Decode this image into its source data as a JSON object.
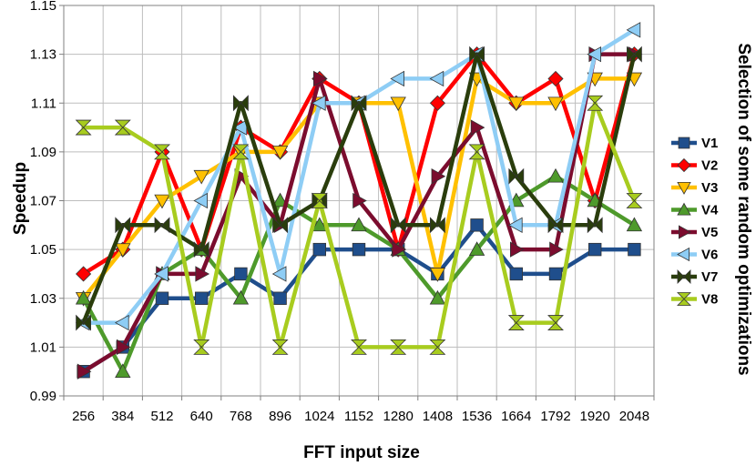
{
  "chart_data": {
    "type": "line",
    "xlabel": "FFT input size",
    "ylabel": "Speedup",
    "legend_title": "Selection of some random optimizations",
    "legend_position": "right",
    "grid": true,
    "ylim": [
      0.99,
      1.15
    ],
    "yticks": [
      "0.99",
      "1.01",
      "1.03",
      "1.05",
      "1.07",
      "1.09",
      "1.11",
      "1.13",
      "1.15"
    ],
    "categories": [
      "256",
      "384",
      "512",
      "640",
      "768",
      "896",
      "1024",
      "1152",
      "1280",
      "1408",
      "1536",
      "1664",
      "1792",
      "1920",
      "2048"
    ],
    "series": [
      {
        "name": "V1",
        "color": "#1f4e8c",
        "marker": "square",
        "values": [
          1.0,
          1.01,
          1.03,
          1.03,
          1.04,
          1.03,
          1.05,
          1.05,
          1.05,
          1.04,
          1.06,
          1.04,
          1.04,
          1.05,
          1.05
        ]
      },
      {
        "name": "V2",
        "color": "#ff0000",
        "marker": "diamond",
        "values": [
          1.04,
          1.05,
          1.09,
          1.05,
          1.1,
          1.09,
          1.12,
          1.11,
          1.05,
          1.11,
          1.13,
          1.11,
          1.12,
          1.07,
          1.13
        ]
      },
      {
        "name": "V3",
        "color": "#ffc000",
        "marker": "triangle-down",
        "values": [
          1.03,
          1.05,
          1.07,
          1.08,
          1.09,
          1.09,
          1.11,
          1.11,
          1.11,
          1.04,
          1.12,
          1.11,
          1.11,
          1.12,
          1.12
        ]
      },
      {
        "name": "V4",
        "color": "#4e9a2b",
        "marker": "triangle-up",
        "values": [
          1.03,
          1.0,
          1.04,
          1.05,
          1.03,
          1.07,
          1.06,
          1.06,
          1.05,
          1.03,
          1.05,
          1.07,
          1.08,
          1.07,
          1.06
        ]
      },
      {
        "name": "V5",
        "color": "#7b0c2e",
        "marker": "triangle-right",
        "values": [
          1.0,
          1.01,
          1.04,
          1.04,
          1.08,
          1.06,
          1.12,
          1.07,
          1.05,
          1.08,
          1.1,
          1.05,
          1.05,
          1.13,
          1.13
        ]
      },
      {
        "name": "V6",
        "color": "#8ecdf5",
        "marker": "triangle-left",
        "values": [
          1.02,
          1.02,
          1.04,
          1.07,
          1.1,
          1.04,
          1.11,
          1.11,
          1.12,
          1.12,
          1.13,
          1.06,
          1.06,
          1.13,
          1.14
        ]
      },
      {
        "name": "V7",
        "color": "#2a3d0c",
        "marker": "bowtie-h",
        "values": [
          1.02,
          1.06,
          1.06,
          1.05,
          1.11,
          1.06,
          1.07,
          1.11,
          1.06,
          1.06,
          1.13,
          1.08,
          1.06,
          1.06,
          1.13
        ]
      },
      {
        "name": "V8",
        "color": "#a8cc1f",
        "marker": "bowtie-v",
        "values": [
          1.1,
          1.1,
          1.09,
          1.01,
          1.09,
          1.01,
          1.07,
          1.01,
          1.01,
          1.01,
          1.09,
          1.02,
          1.02,
          1.11,
          1.07
        ]
      }
    ]
  }
}
